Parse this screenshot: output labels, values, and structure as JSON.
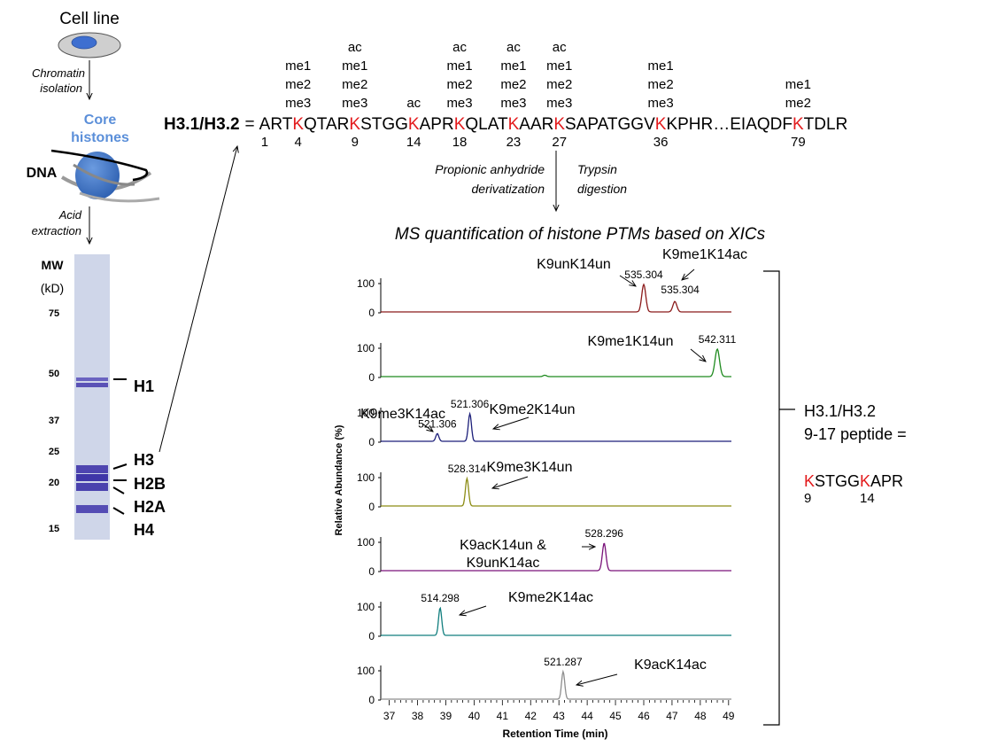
{
  "workflow": {
    "cell_line": "Cell line",
    "chromatin_isolation": [
      "Chromatin",
      "isolation"
    ],
    "core_histones": [
      "Core",
      "histones"
    ],
    "dna": "DNA",
    "acid_extraction": [
      "Acid",
      "extraction"
    ]
  },
  "gel": {
    "mw_title": [
      "MW",
      "(kD)"
    ],
    "mw_markers": [
      "75",
      "50",
      "37",
      "25",
      "20",
      "15"
    ],
    "bands": [
      "H1",
      "H3",
      "H2B",
      "H2A",
      "H4"
    ],
    "lane_color": "#c9d3e8",
    "band_color": "#5b55b8"
  },
  "sequence": {
    "label": "H3.1/H3.2",
    "equals": "=",
    "segments": [
      {
        "t": "ART",
        "k": false
      },
      {
        "t": "K",
        "k": true,
        "pos": "4",
        "mods": [
          "me1",
          "me2",
          "me3"
        ]
      },
      {
        "t": "QTAR",
        "k": false
      },
      {
        "t": "K",
        "k": true,
        "pos": "9",
        "mods": [
          "ac",
          "me1",
          "me2",
          "me3"
        ]
      },
      {
        "t": "STGG",
        "k": false
      },
      {
        "t": "K",
        "k": true,
        "pos": "14",
        "mods": [
          "ac"
        ]
      },
      {
        "t": "APR",
        "k": false
      },
      {
        "t": "K",
        "k": true,
        "pos": "18",
        "mods": [
          "ac",
          "me1",
          "me2",
          "me3"
        ]
      },
      {
        "t": "QLAT",
        "k": false
      },
      {
        "t": "K",
        "k": true,
        "pos": "23",
        "mods": [
          "ac",
          "me1",
          "me2",
          "me3"
        ]
      },
      {
        "t": "AAR",
        "k": false
      },
      {
        "t": "K",
        "k": true,
        "pos": "27",
        "mods": [
          "ac",
          "me1",
          "me2",
          "me3"
        ]
      },
      {
        "t": "SAPATGGV",
        "k": false
      },
      {
        "t": "K",
        "k": true,
        "pos": "36",
        "mods": [
          "me1",
          "me2",
          "me3"
        ]
      },
      {
        "t": "KPHR…EIAQDF",
        "k": false
      },
      {
        "t": "K",
        "k": true,
        "pos": "79",
        "mods": [
          "me1",
          "me2"
        ]
      },
      {
        "t": "TDLR",
        "k": false
      }
    ],
    "position_1": "1",
    "lysine_color": "#e31a1c"
  },
  "steps": {
    "left": [
      "Propionic anhydride",
      "derivatization"
    ],
    "right": [
      "Trypsin",
      "digestion"
    ]
  },
  "ms_title": "MS quantification of histone PTMs based on XICs",
  "chart_data": {
    "type": "line",
    "xlabel": "Retention Time (min)",
    "ylabel": "Relative Abundance (%)",
    "xlim": [
      36.7,
      49.1
    ],
    "x_ticks": [
      "37",
      "38",
      "39",
      "40",
      "41",
      "42",
      "43",
      "44",
      "45",
      "46",
      "47",
      "48",
      "49"
    ],
    "y_ticks": [
      "0",
      "100"
    ],
    "series": [
      {
        "name": "K9unK14un",
        "color": "#8b1a1a",
        "peaks": [
          {
            "rt": 46.0,
            "h": 100,
            "w": 0.14,
            "label": "535.304"
          },
          {
            "rt": 47.1,
            "h": 38,
            "w": 0.14,
            "label": "535.304",
            "note": "K9me1K14ac"
          }
        ]
      },
      {
        "name": "K9me1K14un",
        "color": "#1e8a1e",
        "peaks": [
          {
            "rt": 48.6,
            "h": 100,
            "w": 0.16,
            "label": "542.311"
          },
          {
            "rt": 42.5,
            "h": 5,
            "w": 0.12
          }
        ]
      },
      {
        "name": "K9me2K14un",
        "color": "#1c1f7a",
        "peaks": [
          {
            "rt": 39.85,
            "h": 100,
            "w": 0.11,
            "label": "521.306"
          },
          {
            "rt": 38.7,
            "h": 28,
            "w": 0.11,
            "label": "521.306",
            "note": "K9me3K14ac"
          }
        ]
      },
      {
        "name": "K9me3K14un",
        "color": "#8c8c14",
        "peaks": [
          {
            "rt": 39.75,
            "h": 100,
            "w": 0.11,
            "label": "528.314"
          }
        ]
      },
      {
        "name": "K9acK14un & K9unK14ac",
        "color": "#7a137a",
        "peaks": [
          {
            "rt": 44.6,
            "h": 100,
            "w": 0.13,
            "label": "528.296"
          }
        ]
      },
      {
        "name": "K9me2K14ac",
        "color": "#127f7f",
        "peaks": [
          {
            "rt": 38.8,
            "h": 100,
            "w": 0.11,
            "label": "514.298"
          }
        ]
      },
      {
        "name": "K9acK14ac",
        "color": "#8e8e8e",
        "peaks": [
          {
            "rt": 43.15,
            "h": 100,
            "w": 0.11,
            "label": "521.287"
          }
        ]
      }
    ]
  },
  "peptide": {
    "label": [
      "H3.1/H3.2",
      "9-17 peptide ="
    ],
    "seq": [
      {
        "t": "K",
        "k": true
      },
      {
        "t": "STGG",
        "k": false
      },
      {
        "t": "K",
        "k": true
      },
      {
        "t": "APR",
        "k": false
      }
    ],
    "positions": [
      "9",
      "14"
    ]
  }
}
